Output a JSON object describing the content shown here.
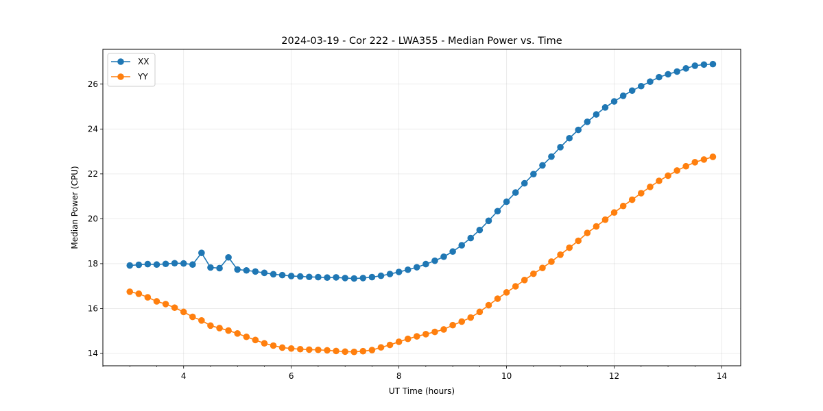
{
  "chart_data": {
    "type": "line",
    "title": "2024-03-19 - Cor 222 - LWA355 - Median Power vs. Time",
    "xlabel": "UT Time (hours)",
    "ylabel": "Median Power (CPU)",
    "xlim": [
      2.5,
      14.35
    ],
    "ylim": [
      13.45,
      27.55
    ],
    "xticks": [
      4,
      6,
      8,
      10,
      12,
      14
    ],
    "xtick_labels": [
      "4",
      "6",
      "8",
      "10",
      "12",
      "14"
    ],
    "yticks": [
      14,
      16,
      18,
      20,
      22,
      24,
      26
    ],
    "ytick_labels": [
      "14",
      "16",
      "18",
      "20",
      "22",
      "24",
      "26"
    ],
    "grid": true,
    "legend_position": "upper-left",
    "x": [
      3.0,
      3.167,
      3.333,
      3.5,
      3.667,
      3.833,
      4.0,
      4.167,
      4.333,
      4.5,
      4.667,
      4.833,
      5.0,
      5.167,
      5.333,
      5.5,
      5.667,
      5.833,
      6.0,
      6.167,
      6.333,
      6.5,
      6.667,
      6.833,
      7.0,
      7.167,
      7.333,
      7.5,
      7.667,
      7.833,
      8.0,
      8.167,
      8.333,
      8.5,
      8.667,
      8.833,
      9.0,
      9.167,
      9.333,
      9.5,
      9.667,
      9.833,
      10.0,
      10.167,
      10.333,
      10.5,
      10.667,
      10.833,
      11.0,
      11.167,
      11.333,
      11.5,
      11.667,
      11.833,
      12.0,
      12.167,
      12.333,
      12.5,
      12.667,
      12.833,
      13.0,
      13.167,
      13.333,
      13.5,
      13.667,
      13.833
    ],
    "series": [
      {
        "name": "XX",
        "color": "#1f77b4",
        "values": [
          17.92,
          17.95,
          17.98,
          17.96,
          17.99,
          18.02,
          18.01,
          17.96,
          18.48,
          17.83,
          17.8,
          18.28,
          17.74,
          17.7,
          17.65,
          17.59,
          17.53,
          17.49,
          17.45,
          17.43,
          17.41,
          17.4,
          17.38,
          17.39,
          17.36,
          17.34,
          17.36,
          17.4,
          17.46,
          17.54,
          17.63,
          17.73,
          17.84,
          17.98,
          18.13,
          18.31,
          18.54,
          18.82,
          19.14,
          19.5,
          19.91,
          20.34,
          20.76,
          21.17,
          21.58,
          21.99,
          22.38,
          22.77,
          23.19,
          23.59,
          23.96,
          24.32,
          24.65,
          24.96,
          25.23,
          25.48,
          25.71,
          25.91,
          26.11,
          26.31,
          26.44,
          26.56,
          26.7,
          26.82,
          26.87,
          26.89
        ]
      },
      {
        "name": "YY",
        "color": "#ff7f0e",
        "values": [
          16.75,
          16.66,
          16.5,
          16.32,
          16.2,
          16.04,
          15.85,
          15.63,
          15.47,
          15.24,
          15.13,
          15.02,
          14.89,
          14.74,
          14.6,
          14.45,
          14.35,
          14.26,
          14.22,
          14.19,
          14.17,
          14.16,
          14.14,
          14.11,
          14.08,
          14.07,
          14.1,
          14.15,
          14.27,
          14.38,
          14.52,
          14.65,
          14.76,
          14.86,
          14.96,
          15.07,
          15.26,
          15.42,
          15.6,
          15.85,
          16.15,
          16.44,
          16.72,
          16.99,
          17.27,
          17.55,
          17.81,
          18.09,
          18.4,
          18.71,
          19.02,
          19.37,
          19.66,
          19.96,
          20.28,
          20.57,
          20.85,
          21.14,
          21.42,
          21.69,
          21.92,
          22.15,
          22.34,
          22.52,
          22.64,
          22.76
        ]
      }
    ]
  }
}
